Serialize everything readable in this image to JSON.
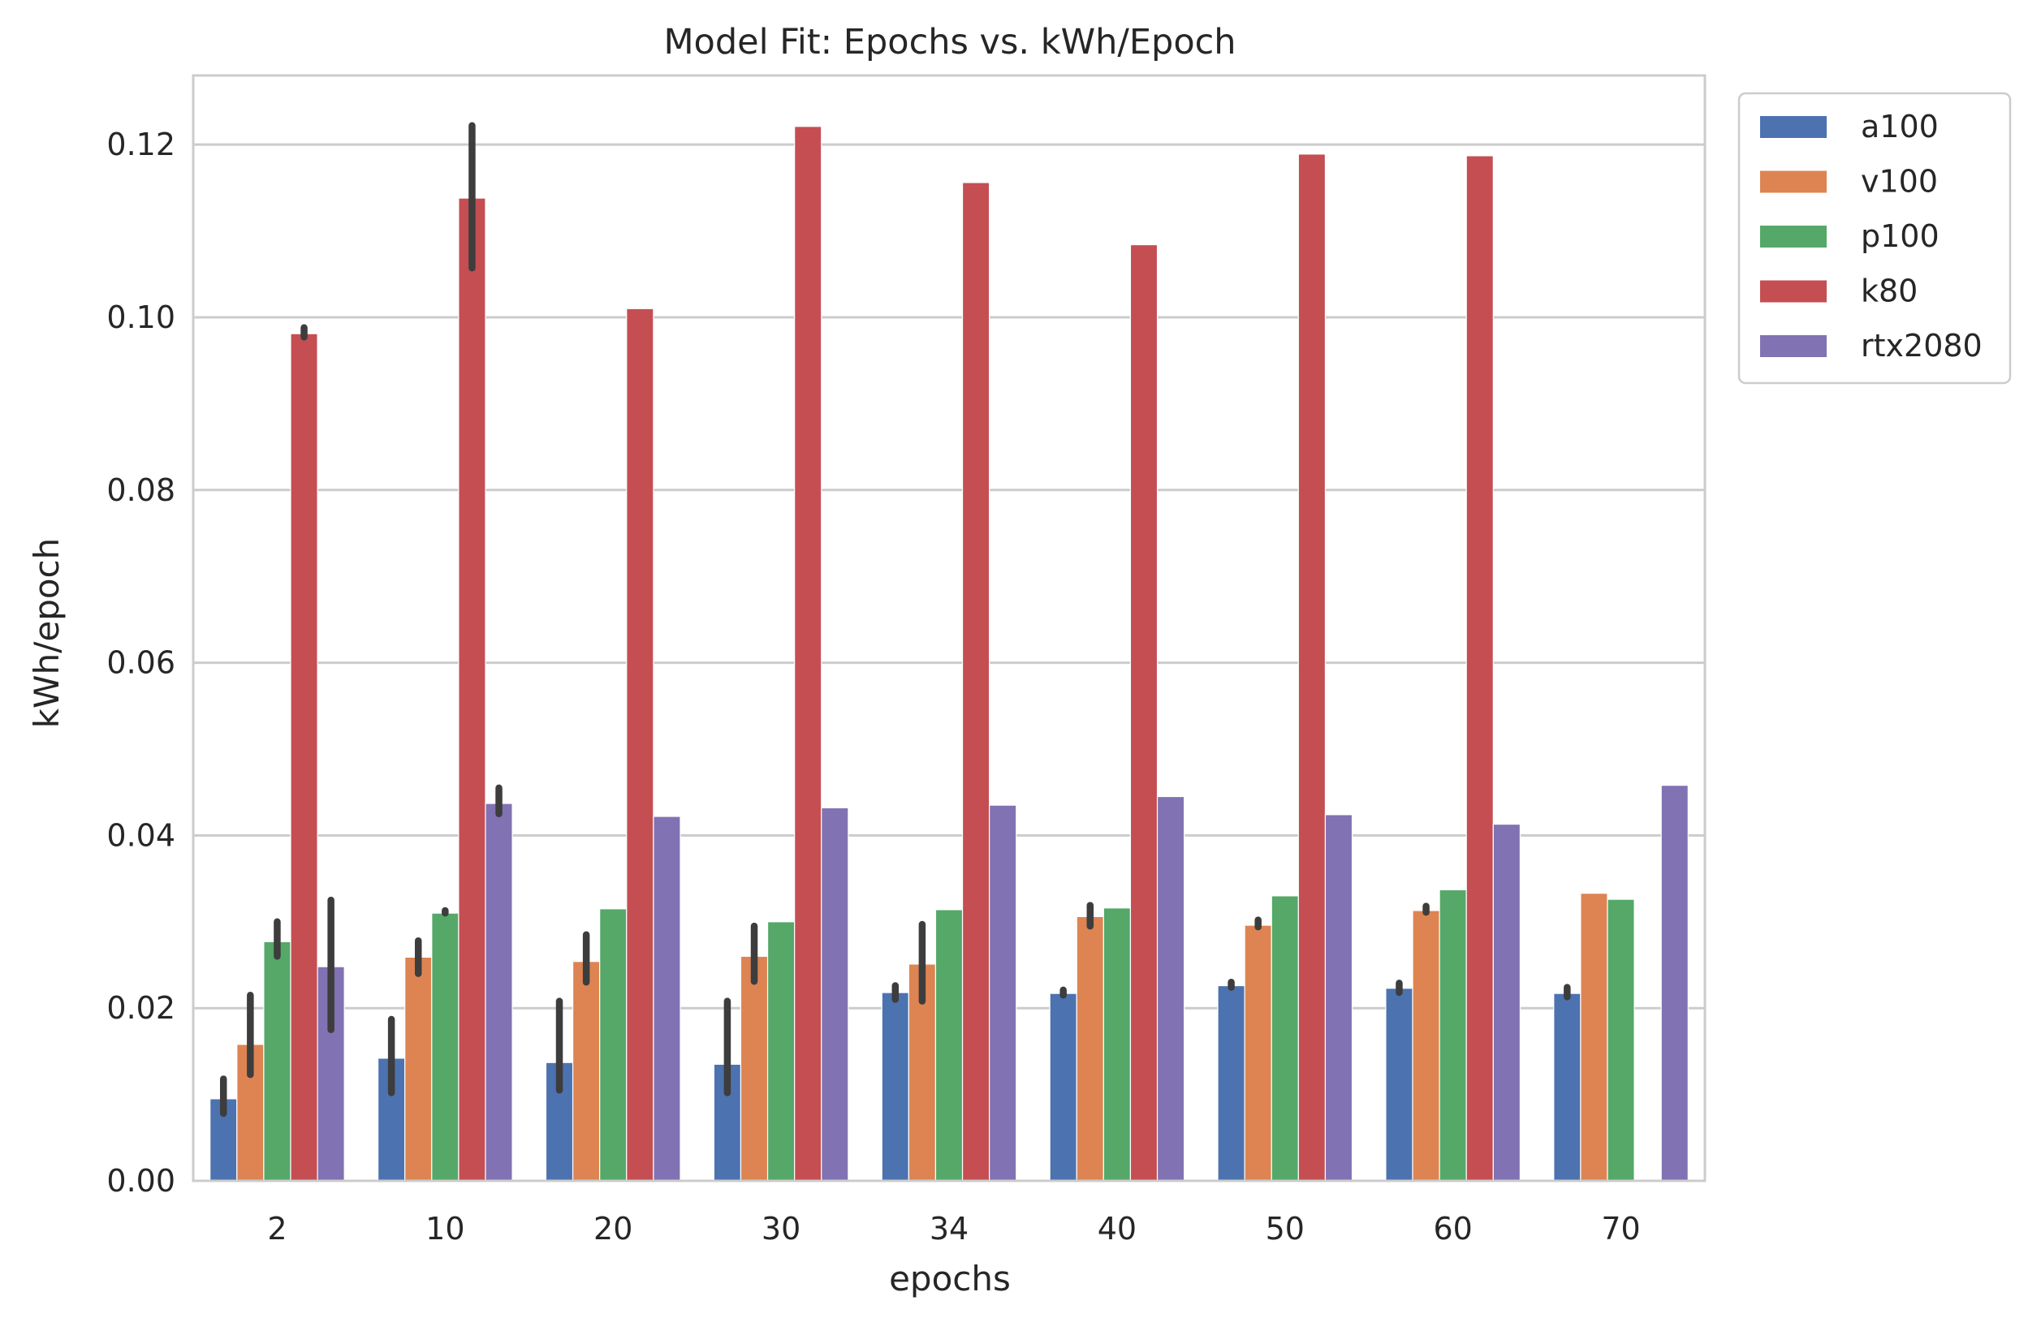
{
  "chart_data": {
    "type": "bar",
    "title": "Model Fit: Epochs vs. kWh/Epoch",
    "xlabel": "epochs",
    "ylabel": "kWh/epoch",
    "ylim": [
      0,
      0.128
    ],
    "yticks": [
      0.0,
      0.02,
      0.04,
      0.06,
      0.08,
      0.1,
      0.12
    ],
    "ytick_labels": [
      "0.00",
      "0.02",
      "0.04",
      "0.06",
      "0.08",
      "0.10",
      "0.12"
    ],
    "grid": true,
    "legend_position": "upper right, outside plot",
    "categories": [
      "2",
      "10",
      "20",
      "30",
      "34",
      "40",
      "50",
      "60",
      "70"
    ],
    "series": [
      {
        "name": "a100",
        "color": "#4c72b0",
        "values": [
          0.0095,
          0.0142,
          0.0137,
          0.0135,
          0.0218,
          0.0217,
          0.0226,
          0.0223,
          0.0217
        ],
        "error": [
          [
            0.0078,
            0.0118
          ],
          [
            0.0102,
            0.0187
          ],
          [
            0.0105,
            0.0208
          ],
          [
            0.0102,
            0.0208
          ],
          [
            0.021,
            0.0226
          ],
          [
            0.0215,
            0.0221
          ],
          [
            0.0224,
            0.023
          ],
          [
            0.0218,
            0.0229
          ],
          [
            0.0213,
            0.0224
          ]
        ]
      },
      {
        "name": "v100",
        "color": "#dd8452",
        "values": [
          0.0158,
          0.0259,
          0.0254,
          0.026,
          0.0251,
          0.0306,
          0.0296,
          0.0313,
          0.0333
        ],
        "error": [
          [
            0.0123,
            0.0215
          ],
          [
            0.024,
            0.0278
          ],
          [
            0.023,
            0.0285
          ],
          [
            0.0231,
            0.0295
          ],
          [
            0.0208,
            0.0297
          ],
          [
            0.0295,
            0.0319
          ],
          [
            0.0294,
            0.0302
          ],
          [
            0.0311,
            0.0318
          ],
          null
        ]
      },
      {
        "name": "p100",
        "color": "#55a868",
        "values": [
          0.0277,
          0.031,
          0.0315,
          0.03,
          0.0314,
          0.0316,
          0.033,
          0.0337,
          0.0326
        ],
        "error": [
          [
            0.026,
            0.03
          ],
          [
            0.031,
            0.0313
          ],
          null,
          null,
          null,
          null,
          null,
          null,
          null
        ]
      },
      {
        "name": "k80",
        "color": "#c44e52",
        "values": [
          0.0981,
          0.1138,
          0.101,
          0.1221,
          0.1156,
          0.1084,
          0.1189,
          0.1187,
          null
        ],
        "error": [
          [
            0.0977,
            0.0988
          ],
          [
            0.1057,
            0.1222
          ],
          null,
          null,
          null,
          null,
          null,
          null,
          null
        ]
      },
      {
        "name": "rtx2080",
        "color": "#8172b3",
        "values": [
          0.0248,
          0.0437,
          0.0422,
          0.0432,
          0.0435,
          0.0445,
          0.0424,
          0.0413,
          0.0458
        ],
        "error": [
          [
            0.0175,
            0.0325
          ],
          [
            0.0425,
            0.0455
          ],
          null,
          null,
          null,
          null,
          null,
          null,
          null
        ]
      }
    ]
  }
}
